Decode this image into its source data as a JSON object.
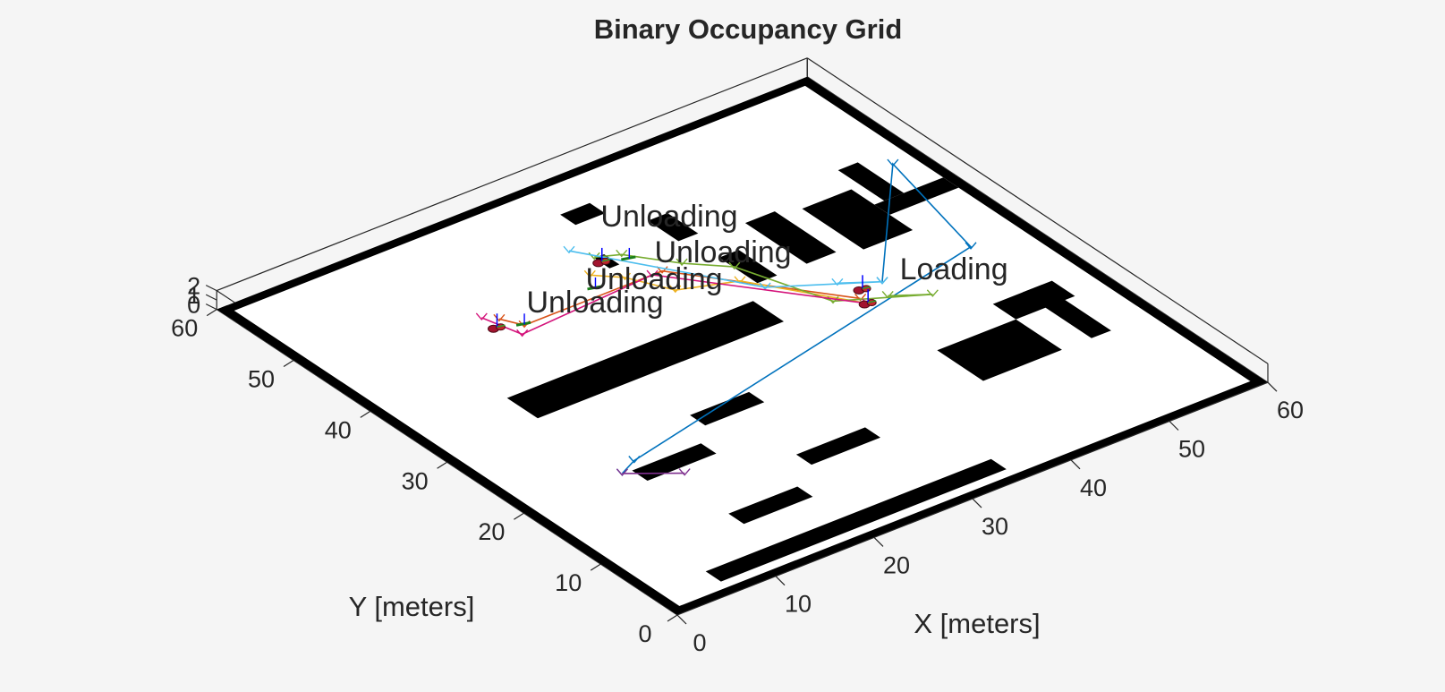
{
  "chart_data": {
    "type": "3d-occupancy-map",
    "title": "Binary Occupancy Grid",
    "xlabel": "X [meters]",
    "ylabel": "Y [meters]",
    "zlabel": "",
    "xlim": [
      0,
      60
    ],
    "ylim": [
      0,
      60
    ],
    "zlim": [
      0,
      2
    ],
    "xticks": [
      "0",
      "10",
      "20",
      "30",
      "40",
      "50",
      "60"
    ],
    "yticks": [
      "0",
      "10",
      "20",
      "30",
      "40",
      "50",
      "60"
    ],
    "zticks": [
      "0",
      "1",
      "2"
    ],
    "background": "#f5f5f5",
    "free_color": "#ffffff",
    "occupied_color": "#000000",
    "obstacles": [
      {
        "x": [
          0,
          60
        ],
        "y": [
          0,
          1
        ]
      },
      {
        "x": [
          0,
          60
        ],
        "y": [
          59,
          60
        ]
      },
      {
        "x": [
          0,
          1
        ],
        "y": [
          0,
          60
        ]
      },
      {
        "x": [
          59,
          60
        ],
        "y": [
          0,
          60
        ]
      },
      {
        "x": [
          6,
          35
        ],
        "y": [
          2,
          4
        ]
      },
      {
        "x": [
          10,
          35
        ],
        "y": [
          31,
          35
        ]
      },
      {
        "x": [
          13,
          20
        ],
        "y": [
          8,
          10
        ]
      },
      {
        "x": [
          23,
          30
        ],
        "y": [
          12,
          14
        ]
      },
      {
        "x": [
          11,
          18
        ],
        "y": [
          18,
          20
        ]
      },
      {
        "x": [
          20,
          26
        ],
        "y": [
          22,
          24
        ]
      },
      {
        "x": [
          37,
          39
        ],
        "y": [
          37,
          42
        ]
      },
      {
        "x": [
          42,
          45
        ],
        "y": [
          37,
          45
        ]
      },
      {
        "x": [
          47,
          52
        ],
        "y": [
          36,
          44
        ]
      },
      {
        "x": [
          52,
          59
        ],
        "y": [
          39,
          41
        ]
      },
      {
        "x": [
          53,
          55
        ],
        "y": [
          41,
          47
        ]
      },
      {
        "x": [
          29,
          30
        ],
        "y": [
          46,
          48
        ]
      },
      {
        "x": [
          31,
          34
        ],
        "y": [
          53,
          55
        ]
      },
      {
        "x": [
          36,
          38
        ],
        "y": [
          46,
          50
        ]
      },
      {
        "x": [
          42,
          50
        ],
        "y": [
          14,
          20
        ]
      },
      {
        "x": [
          50,
          56
        ],
        "y": [
          20,
          23
        ]
      },
      {
        "x": [
          53,
          55
        ],
        "y": [
          14,
          23
        ]
      }
    ],
    "annotations": [
      {
        "text": "Unloading",
        "x": 32,
        "y": 51,
        "z": 0.5
      },
      {
        "text": "Unloading",
        "x": 32,
        "y": 44,
        "z": 0.5
      },
      {
        "text": "Unloading",
        "x": 25,
        "y": 44,
        "z": 0.5
      },
      {
        "text": "Unloading",
        "x": 19,
        "y": 44,
        "z": 0.5
      },
      {
        "text": "Loading",
        "x": 46,
        "y": 30,
        "z": 0.5
      }
    ],
    "series": [
      {
        "color": "#0072bd",
        "x": [
          10,
          12,
          54,
          57,
          45
        ],
        "y": [
          20,
          21,
          31,
          45,
          31
        ]
      },
      {
        "color": "#d95319",
        "x": [
          42,
          32,
          18,
          17
        ],
        "y": [
          30,
          43,
          43,
          45
        ]
      },
      {
        "color": "#edb120",
        "x": [
          42,
          36,
          31,
          29,
          27
        ],
        "y": [
          29,
          38,
          40,
          44,
          46
        ]
      },
      {
        "color": "#7e2f8e",
        "x": [
          10,
          14
        ],
        "y": [
          20,
          17
        ]
      },
      {
        "color": "#77ac30",
        "x": [
          44,
          47,
          40,
          37,
          34,
          31,
          29
        ],
        "y": [
          29,
          27,
          31,
          40,
          43,
          47,
          48
        ]
      },
      {
        "color": "#4dbeee",
        "x": [
          42,
          45,
          37,
          28
        ],
        "y": [
          33,
          31,
          36,
          50
        ]
      },
      {
        "color": "#d4147b",
        "x": [
          42,
          31,
          17,
          16
        ],
        "y": [
          29,
          43,
          42,
          46
        ]
      }
    ],
    "robots": [
      {
        "x": 29,
        "y": 47
      },
      {
        "x": 43,
        "y": 31
      },
      {
        "x": 42,
        "y": 29
      },
      {
        "x": 16,
        "y": 44
      }
    ],
    "markers": [
      {
        "x": 31,
        "y": 46
      },
      {
        "x": 26,
        "y": 44
      },
      {
        "x": 18,
        "y": 43
      }
    ]
  }
}
